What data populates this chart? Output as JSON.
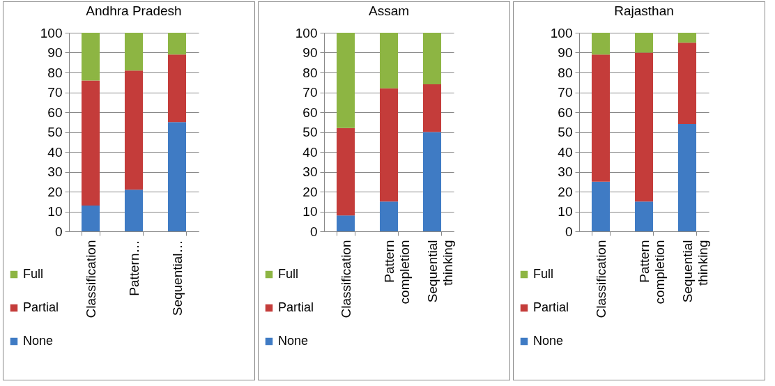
{
  "chart_data": [
    {
      "type": "bar",
      "title": "Andhra Pradesh",
      "stacked": true,
      "categories": [
        "Classification",
        "Pattern…",
        "Sequential…"
      ],
      "ylim": [
        0,
        100
      ],
      "yticks": [
        0,
        10,
        20,
        30,
        40,
        50,
        60,
        70,
        80,
        90,
        100
      ],
      "grid": "y",
      "legend": "bottom left",
      "series": [
        {
          "name": "None",
          "color": "#3f7bc4",
          "values": [
            13,
            21,
            55
          ]
        },
        {
          "name": "Partial",
          "color": "#c43c3a",
          "values": [
            63,
            60,
            34
          ]
        },
        {
          "name": "Full",
          "color": "#8db543",
          "values": [
            24,
            19,
            11
          ]
        }
      ]
    },
    {
      "type": "bar",
      "title": "Assam",
      "stacked": true,
      "categories": [
        "Classification",
        "Pattern completion",
        "Sequential thinking"
      ],
      "ylim": [
        0,
        100
      ],
      "yticks": [
        0,
        10,
        20,
        30,
        40,
        50,
        60,
        70,
        80,
        90,
        100
      ],
      "grid": "y",
      "legend": "bottom left",
      "series": [
        {
          "name": "None",
          "color": "#3f7bc4",
          "values": [
            8,
            15,
            50
          ]
        },
        {
          "name": "Partial",
          "color": "#c43c3a",
          "values": [
            44,
            57,
            24
          ]
        },
        {
          "name": "Full",
          "color": "#8db543",
          "values": [
            48,
            28,
            26
          ]
        }
      ]
    },
    {
      "type": "bar",
      "title": "Rajasthan",
      "stacked": true,
      "categories": [
        "Classification",
        "Pattern completion",
        "Sequential thinking"
      ],
      "ylim": [
        0,
        100
      ],
      "yticks": [
        0,
        10,
        20,
        30,
        40,
        50,
        60,
        70,
        80,
        90,
        100
      ],
      "grid": "y",
      "legend": "bottom left",
      "series": [
        {
          "name": "None",
          "color": "#3f7bc4",
          "values": [
            25,
            15,
            54
          ]
        },
        {
          "name": "Partial",
          "color": "#c43c3a",
          "values": [
            64,
            75,
            41
          ]
        },
        {
          "name": "Full",
          "color": "#8db543",
          "values": [
            11,
            10,
            5
          ]
        }
      ]
    }
  ]
}
